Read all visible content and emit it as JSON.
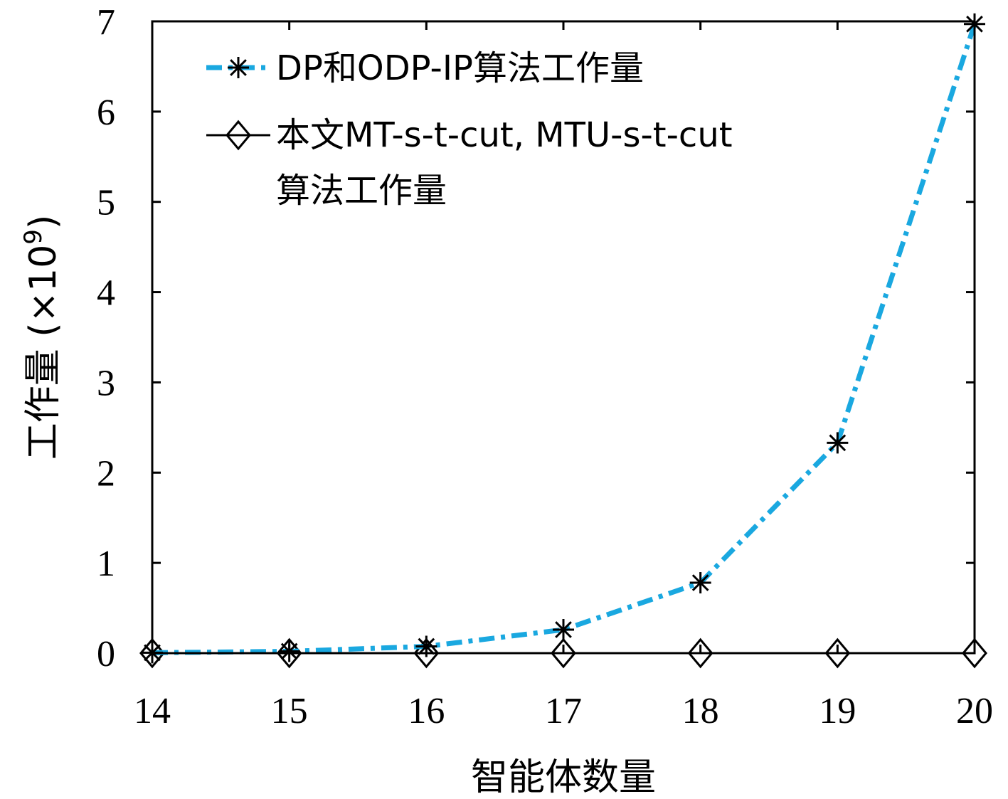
{
  "chart_data": {
    "type": "line",
    "x": [
      14,
      15,
      16,
      17,
      18,
      19,
      20
    ],
    "xlabel": "智能体数量",
    "ylabel": "工作量 (×10",
    "ylabel_sup": "9",
    "ylabel_close": ")",
    "xlim": [
      14,
      20
    ],
    "ylim": [
      0,
      7
    ],
    "xticks": [
      14,
      15,
      16,
      17,
      18,
      19,
      20
    ],
    "yticks": [
      0,
      1,
      2,
      3,
      4,
      5,
      6,
      7
    ],
    "grid": false,
    "legend_position": "top-left",
    "series": [
      {
        "name": "DP和ODP-IP算法工作量",
        "values": [
          0.005,
          0.02,
          0.075,
          0.26,
          0.78,
          2.33,
          6.97
        ],
        "color": "#1aa8e0",
        "line_style": "dash-dot",
        "marker": "asterisk"
      },
      {
        "name": "本文MT-s-t-cut, MTU-s-t-cut",
        "name_line2": "算法工作量",
        "values": [
          0,
          0,
          0,
          0,
          0,
          0,
          0
        ],
        "color": "#000000",
        "line_style": "solid",
        "marker": "diamond"
      }
    ]
  }
}
